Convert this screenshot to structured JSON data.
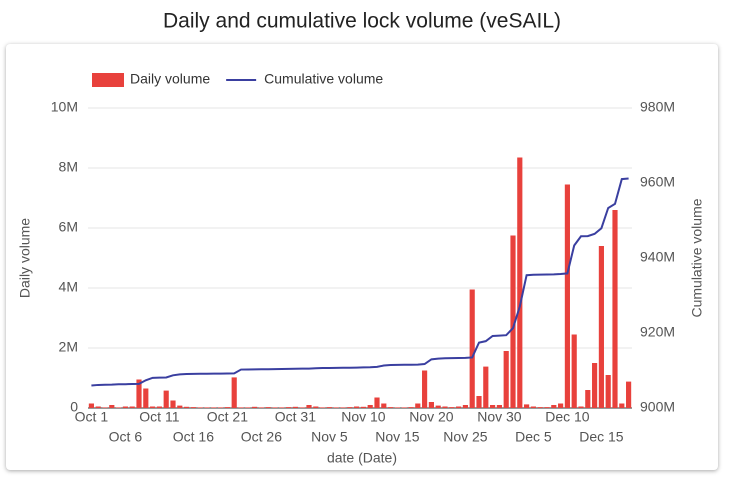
{
  "chart_data": {
    "type": "bar",
    "title": "Daily and cumulative lock volume (veSAIL)",
    "xlabel": "date (Date)",
    "ylabel": "Daily volume",
    "y2label": "Cumulative volume",
    "categories": [
      "Oct 1",
      null,
      null,
      null,
      null,
      "Oct 6",
      null,
      null,
      null,
      null,
      "Oct 11",
      null,
      null,
      null,
      null,
      "Oct 16",
      null,
      null,
      null,
      null,
      "Oct 21",
      null,
      null,
      null,
      null,
      "Oct 26",
      null,
      null,
      null,
      null,
      "Oct 31",
      null,
      null,
      null,
      null,
      "Nov 5",
      null,
      null,
      null,
      null,
      "Nov 10",
      null,
      null,
      null,
      null,
      "Nov 15",
      null,
      null,
      null,
      null,
      "Nov 20",
      null,
      null,
      null,
      null,
      "Nov 25",
      null,
      null,
      null,
      null,
      "Nov 30",
      null,
      null,
      null,
      null,
      "Dec 5",
      null,
      null,
      null,
      null,
      "Dec 10",
      null,
      null,
      null,
      null,
      "Dec 15",
      null,
      null,
      null,
      null
    ],
    "series": [
      {
        "name": "Daily volume",
        "type": "bar",
        "axis": "y",
        "color": "#e8413c",
        "values": [
          150000,
          50000,
          20000,
          100000,
          20000,
          50000,
          50000,
          950000,
          650000,
          50000,
          50000,
          580000,
          250000,
          80000,
          40000,
          30000,
          20000,
          20000,
          20000,
          20000,
          30000,
          1020000,
          20000,
          20000,
          40000,
          20000,
          30000,
          20000,
          20000,
          30000,
          40000,
          20000,
          100000,
          50000,
          20000,
          30000,
          20000,
          20000,
          30000,
          50000,
          40000,
          100000,
          350000,
          150000,
          30000,
          20000,
          20000,
          30000,
          150000,
          1250000,
          200000,
          80000,
          50000,
          30000,
          50000,
          100000,
          3950000,
          400000,
          1380000,
          100000,
          100000,
          1900000,
          5750000,
          8350000,
          120000,
          50000,
          30000,
          30000,
          100000,
          150000,
          7450000,
          2450000,
          50000,
          600000,
          1500000,
          5400000,
          1100000,
          6600000,
          150000,
          880000
        ]
      },
      {
        "name": "Cumulative volume",
        "type": "line",
        "axis": "y2",
        "color": "#3a3fa0",
        "values": [
          906000000,
          906150000,
          906200000,
          906220000,
          906320000,
          906340000,
          906390000,
          906440000,
          907390000,
          908040000,
          908090000,
          908140000,
          908720000,
          908970000,
          909050000,
          909090000,
          909120000,
          909140000,
          909160000,
          909180000,
          909200000,
          909230000,
          910250000,
          910270000,
          910290000,
          910330000,
          910350000,
          910380000,
          910400000,
          910420000,
          910450000,
          910490000,
          910510000,
          910610000,
          910660000,
          910680000,
          910710000,
          910730000,
          910750000,
          910780000,
          910830000,
          910870000,
          910970000,
          911320000,
          911470000,
          911500000,
          911520000,
          911540000,
          911570000,
          911720000,
          912970000,
          913170000,
          913250000,
          913300000,
          913330000,
          913380000,
          913480000,
          917430000,
          917830000,
          919210000,
          919310000,
          919410000,
          921310000,
          927060000,
          935410000,
          935530000,
          935580000,
          935610000,
          935640000,
          935740000,
          935890000,
          943340000,
          945790000,
          945840000,
          946440000,
          947940000,
          953340000,
          954440000,
          961040000,
          961190000
        ]
      }
    ],
    "ylim": [
      0,
      10000000
    ],
    "yticks": [
      0,
      {
        "value": 2000000,
        "label": "2M"
      },
      {
        "value": 4000000,
        "label": "4M"
      },
      {
        "value": 6000000,
        "label": "6M"
      },
      {
        "value": 8000000,
        "label": "8M"
      },
      {
        "value": 10000000,
        "label": "10M"
      }
    ],
    "y2lim": [
      900000000,
      980000000
    ],
    "y2ticks": [
      {
        "value": 900000000,
        "label": "900M"
      },
      {
        "value": 920000000,
        "label": "920M"
      },
      {
        "value": 940000000,
        "label": "940M"
      },
      {
        "value": 960000000,
        "label": "960M"
      },
      {
        "value": 980000000,
        "label": "980M"
      }
    ],
    "grid": true,
    "legend": "top-left"
  }
}
